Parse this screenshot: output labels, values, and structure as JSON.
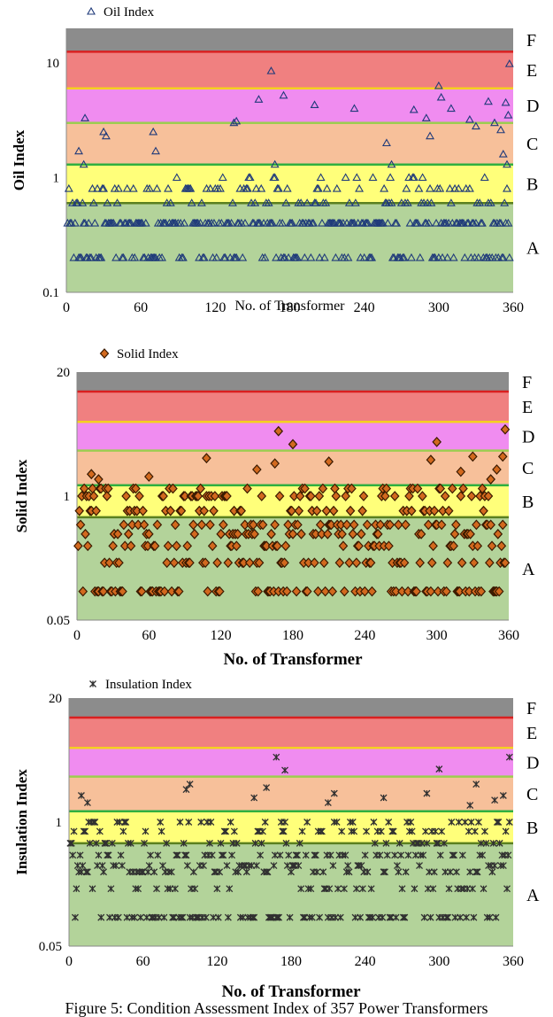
{
  "caption": "Figure 5: Condition Assessment Index of 357 Power Transformers",
  "colors": {
    "band_F": "#8c8c8c",
    "band_E": "#f08080",
    "band_D": "#f08cf0",
    "band_C": "#f7c09a",
    "band_B": "#ffff7a",
    "band_A": "#b3d39a",
    "line_F": "#d92020",
    "line_E": "#f5d020",
    "line_D": "#9ccd50",
    "line_C": "#30b040",
    "line_B": "#5a8020",
    "oil_marker": "#1f3a7a",
    "solid_marker_fill": "#d2691e",
    "solid_marker_stroke": "#3a1a00",
    "insulation_marker": "#303030"
  },
  "chart_data": [
    {
      "type": "scatter",
      "legend": "Oil Index",
      "marker": "triangle",
      "xlabel": "No. of Transformer",
      "ylabel": "Oil Index",
      "yscale": "log",
      "xlim": [
        0,
        360
      ],
      "ylim": [
        0.1,
        20
      ],
      "xticks": [
        "0",
        "60",
        "120",
        "180",
        "240",
        "300",
        "360"
      ],
      "yticks": [
        {
          "value": 0.1,
          "label": "0.1"
        },
        {
          "value": 1,
          "label": "1"
        },
        {
          "value": 10,
          "label": "10"
        }
      ],
      "bands": [
        {
          "label": "A",
          "from": 0.1,
          "to": 0.6
        },
        {
          "label": "B",
          "from": 0.6,
          "to": 1.3
        },
        {
          "label": "C",
          "from": 1.3,
          "to": 3
        },
        {
          "label": "D",
          "from": 3,
          "to": 6
        },
        {
          "label": "E",
          "from": 6,
          "to": 12.5
        },
        {
          "label": "F",
          "from": 12.5,
          "to": 20
        }
      ],
      "bound_lines": [
        0.6,
        1.3,
        3,
        6,
        12.5
      ],
      "levels": [
        0.2,
        0.4,
        0.6,
        0.8,
        1.0
      ],
      "highs": [
        [
          15,
          3.3
        ],
        [
          10,
          1.7
        ],
        [
          14,
          1.3
        ],
        [
          30,
          2.5
        ],
        [
          32,
          2.3
        ],
        [
          70,
          2.5
        ],
        [
          72,
          1.7
        ],
        [
          135,
          3.0
        ],
        [
          137,
          3.1
        ],
        [
          155,
          4.8
        ],
        [
          165,
          8.5
        ],
        [
          168,
          1.3
        ],
        [
          175,
          5.2
        ],
        [
          200,
          4.3
        ],
        [
          232,
          4.0
        ],
        [
          258,
          2.0
        ],
        [
          262,
          1.3
        ],
        [
          280,
          3.9
        ],
        [
          290,
          3.3
        ],
        [
          293,
          2.3
        ],
        [
          300,
          6.3
        ],
        [
          302,
          5.0
        ],
        [
          310,
          4.0
        ],
        [
          325,
          3.2
        ],
        [
          330,
          2.8
        ],
        [
          340,
          4.6
        ],
        [
          345,
          3.0
        ],
        [
          350,
          2.6
        ],
        [
          352,
          1.6
        ],
        [
          355,
          1.3
        ],
        [
          356,
          3.5
        ],
        [
          354,
          4.5
        ],
        [
          357,
          9.8
        ]
      ]
    },
    {
      "type": "scatter",
      "legend": "Solid Index",
      "marker": "diamond",
      "xlabel": "No. of Transformer",
      "ylabel": "Solid Index",
      "yscale": "log",
      "xlim": [
        0,
        360
      ],
      "ylim": [
        0.05,
        20
      ],
      "xticks": [
        "0",
        "60",
        "120",
        "180",
        "240",
        "300",
        "360"
      ],
      "yticks": [
        {
          "value": 0.05,
          "label": "0.05"
        },
        {
          "value": 1,
          "label": "1"
        },
        {
          "value": 20,
          "label": "20"
        }
      ],
      "bands": [
        {
          "label": "A",
          "from": 0.05,
          "to": 0.6
        },
        {
          "label": "B",
          "from": 0.6,
          "to": 1.3
        },
        {
          "label": "C",
          "from": 1.3,
          "to": 3
        },
        {
          "label": "D",
          "from": 3,
          "to": 6
        },
        {
          "label": "E",
          "from": 6,
          "to": 12.5
        },
        {
          "label": "F",
          "from": 12.5,
          "to": 20
        }
      ],
      "bound_lines": [
        0.6,
        1.3,
        3,
        6,
        12.5
      ],
      "levels": [
        0.1,
        0.2,
        0.3,
        0.4,
        0.5,
        0.7,
        1.0,
        1.2
      ],
      "highs": [
        [
          12,
          1.7
        ],
        [
          18,
          1.5
        ],
        [
          60,
          1.6
        ],
        [
          108,
          2.5
        ],
        [
          150,
          1.9
        ],
        [
          165,
          2.2
        ],
        [
          168,
          4.8
        ],
        [
          180,
          3.5
        ],
        [
          210,
          2.3
        ],
        [
          295,
          2.4
        ],
        [
          300,
          3.7
        ],
        [
          320,
          1.8
        ],
        [
          330,
          2.6
        ],
        [
          345,
          1.5
        ],
        [
          350,
          1.9
        ],
        [
          355,
          2.6
        ],
        [
          357,
          5.0
        ]
      ]
    },
    {
      "type": "scatter",
      "legend": "Insulation Index",
      "marker": "asterisk",
      "xlabel": "No. of Transformer",
      "ylabel": "Insulation Index",
      "yscale": "log",
      "xlim": [
        0,
        360
      ],
      "ylim": [
        0.05,
        20
      ],
      "xticks": [
        "0",
        "60",
        "120",
        "180",
        "240",
        "300",
        "360"
      ],
      "yticks": [
        {
          "value": 0.05,
          "label": "0.05"
        },
        {
          "value": 1,
          "label": "1"
        },
        {
          "value": 20,
          "label": "20"
        }
      ],
      "bands": [
        {
          "label": "A",
          "from": 0.05,
          "to": 0.6
        },
        {
          "label": "B",
          "from": 0.6,
          "to": 1.3
        },
        {
          "label": "C",
          "from": 1.3,
          "to": 3
        },
        {
          "label": "D",
          "from": 3,
          "to": 6
        },
        {
          "label": "E",
          "from": 6,
          "to": 12.5
        },
        {
          "label": "F",
          "from": 12.5,
          "to": 20
        }
      ],
      "bound_lines": [
        0.6,
        1.3,
        3,
        6,
        12.5
      ],
      "levels": [
        0.1,
        0.2,
        0.3,
        0.35,
        0.45,
        0.6,
        0.8,
        1.0
      ],
      "highs": [
        [
          10,
          1.9
        ],
        [
          15,
          1.6
        ],
        [
          95,
          2.2
        ],
        [
          98,
          2.5
        ],
        [
          150,
          1.8
        ],
        [
          160,
          2.3
        ],
        [
          168,
          4.8
        ],
        [
          175,
          3.5
        ],
        [
          210,
          1.6
        ],
        [
          215,
          2.0
        ],
        [
          255,
          1.8
        ],
        [
          290,
          2.0
        ],
        [
          300,
          3.6
        ],
        [
          325,
          1.5
        ],
        [
          330,
          2.5
        ],
        [
          345,
          1.7
        ],
        [
          352,
          1.9
        ],
        [
          357,
          4.8
        ]
      ]
    }
  ]
}
